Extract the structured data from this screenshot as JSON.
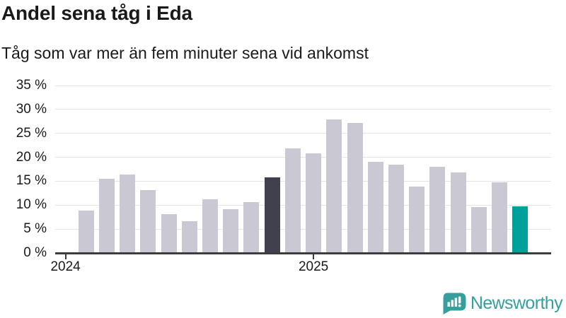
{
  "header": {
    "title": "Andel sena tåg i Eda",
    "subtitle": "Tåg som var mer än fem minuter sena vid ankomst"
  },
  "footer": {
    "brand": "Newsworthy",
    "logo_icon": "newsworthy-speech-bubble-bar-chart-icon"
  },
  "colors": {
    "text": "#1a1a1a",
    "bar_default": "#c9c8d3",
    "bar_dark": "#41404e",
    "bar_teal": "#00a09b",
    "axis": "#3d3d3d",
    "gridline": "#e4e4e6",
    "brand_teal": "#359f9d"
  },
  "chart_data": {
    "type": "bar",
    "title": "Andel sena tåg i Eda",
    "subtitle": "Tåg som var mer än fem minuter sena vid ankomst",
    "unit": "percent share of trains more than five minutes late at arrival",
    "x": [
      "2024-02",
      "2024-03",
      "2024-04",
      "2024-05",
      "2024-06",
      "2024-07",
      "2024-08",
      "2024-09",
      "2024-10",
      "2024-11",
      "2024-12",
      "2025-01",
      "2025-02",
      "2025-03",
      "2025-04",
      "2025-05",
      "2025-06",
      "2025-07",
      "2025-08",
      "2025-09",
      "2025-10",
      "2025-11"
    ],
    "values": [
      8.9,
      15.5,
      16.4,
      13.2,
      8.1,
      6.7,
      11.2,
      9.2,
      10.7,
      15.8,
      21.9,
      20.8,
      27.9,
      27.1,
      19.0,
      18.4,
      13.9,
      18.0,
      16.9,
      9.6,
      14.8,
      9.8
    ],
    "x_domain": [
      "2024-01",
      "2025-12"
    ],
    "xticks": [
      {
        "label": "2024",
        "month": "2024-01"
      },
      {
        "label": "2025",
        "month": "2025-01"
      }
    ],
    "ylim": [
      0,
      35
    ],
    "ytick_step": 5,
    "ytick_suffix": " %",
    "grid": "horizontal",
    "legend": "none",
    "highlights": {
      "dark_month": "2024-11",
      "teal_month": "2025-11"
    }
  }
}
